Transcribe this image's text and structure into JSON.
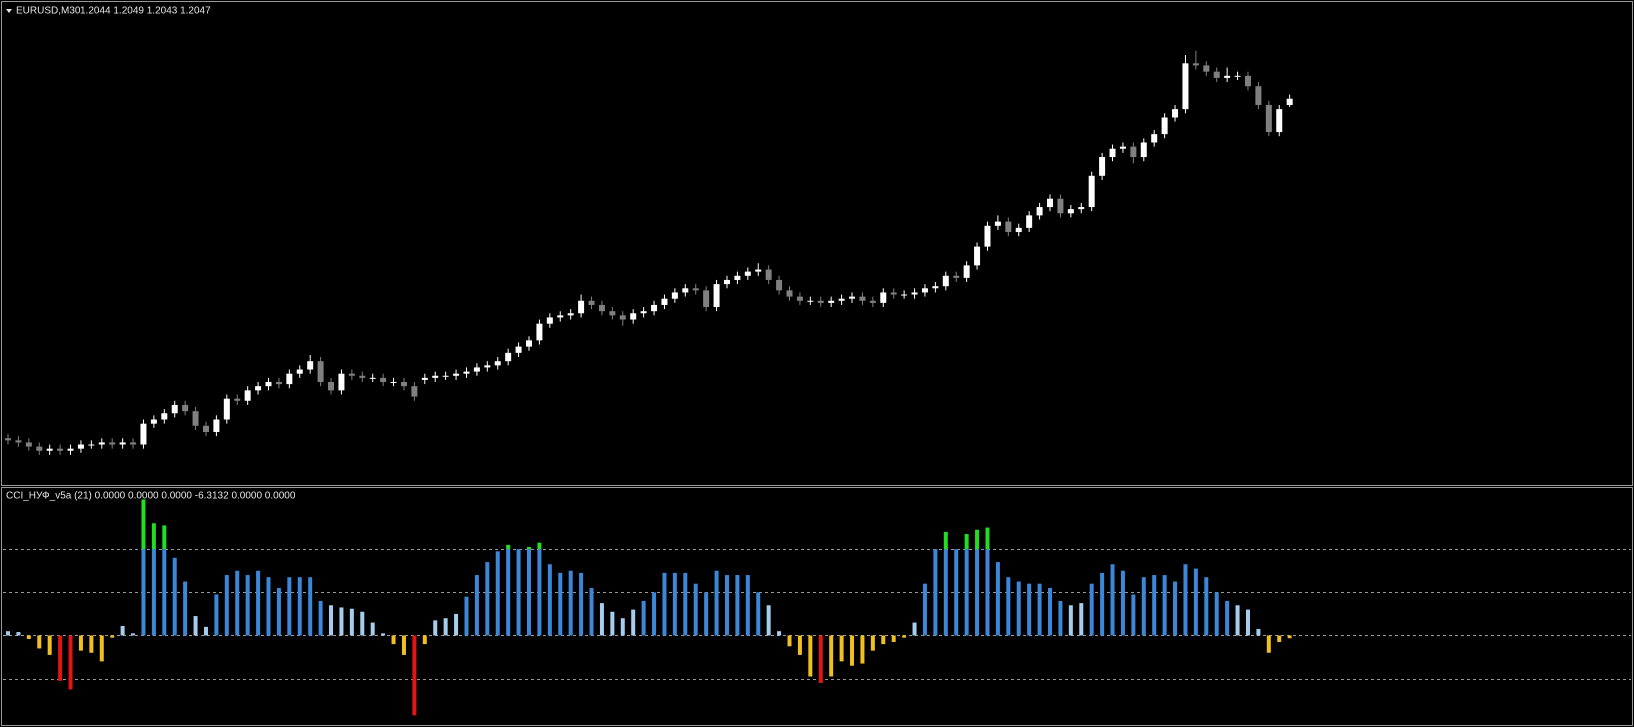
{
  "chart_data": [
    {
      "type": "candlestick",
      "title": "EURUSD,M30",
      "header_values": "1.2044 1.2049 1.2043 1.2047",
      "open": [
        1.1884,
        1.1883,
        1.1882,
        1.188,
        1.1878,
        1.1879,
        1.1878,
        1.1879,
        1.1881,
        1.1881,
        1.1882,
        1.1881,
        1.1882,
        1.1881,
        1.1891,
        1.1893,
        1.1896,
        1.19,
        1.1897,
        1.189,
        1.1887,
        1.1893,
        1.1903,
        1.1902,
        1.1907,
        1.1909,
        1.1911,
        1.191,
        1.1915,
        1.1917,
        1.1921,
        1.1911,
        1.1907,
        1.1915,
        1.1914,
        1.1913,
        1.1913,
        1.1911,
        1.1911,
        1.1909,
        1.1912,
        1.1913,
        1.1914,
        1.1914,
        1.1915,
        1.1916,
        1.1918,
        1.1919,
        1.1921,
        1.1925,
        1.1928,
        1.1931,
        1.1939,
        1.1942,
        1.1943,
        1.1944,
        1.195,
        1.1948,
        1.1945,
        1.1943,
        1.1941,
        1.1944,
        1.1945,
        1.1948,
        1.1951,
        1.1954,
        1.1956,
        1.1955,
        1.1947,
        1.1958,
        1.196,
        1.1962,
        1.1964,
        1.1965,
        1.196,
        1.1955,
        1.1952,
        1.195,
        1.195,
        1.1949,
        1.195,
        1.1951,
        1.1952,
        1.195,
        1.1949,
        1.1954,
        1.1953,
        1.1953,
        1.1954,
        1.1956,
        1.1957,
        1.1962,
        1.1961,
        1.1967,
        1.1976,
        1.1986,
        1.1988,
        1.1983,
        1.1985,
        1.1991,
        1.1995,
        1.1999,
        1.1992,
        1.1994,
        1.1995,
        1.201,
        1.2019,
        1.2023,
        1.2024,
        1.2019,
        1.2026,
        1.203,
        1.2038,
        1.2042,
        1.2064,
        1.2063,
        1.206,
        1.2057,
        1.2058,
        1.2058,
        1.2053,
        1.2044,
        1.2031,
        1.2044
      ],
      "high": [
        1.1886,
        1.1885,
        1.1884,
        1.1882,
        1.1881,
        1.1881,
        1.1881,
        1.1883,
        1.1883,
        1.1884,
        1.1884,
        1.1884,
        1.1884,
        1.1893,
        1.1895,
        1.1898,
        1.1902,
        1.1902,
        1.1899,
        1.1892,
        1.1895,
        1.1905,
        1.1905,
        1.1909,
        1.1911,
        1.1913,
        1.1913,
        1.1917,
        1.1919,
        1.1924,
        1.1923,
        1.1913,
        1.1917,
        1.1917,
        1.1916,
        1.1915,
        1.1915,
        1.1913,
        1.1913,
        1.1911,
        1.1915,
        1.1916,
        1.1916,
        1.1917,
        1.1918,
        1.192,
        1.1921,
        1.1923,
        1.1927,
        1.193,
        1.1933,
        1.1941,
        1.1944,
        1.1945,
        1.1946,
        1.1953,
        1.1952,
        1.195,
        1.1947,
        1.1945,
        1.1946,
        1.1947,
        1.195,
        1.1953,
        1.1956,
        1.1958,
        1.1958,
        1.1957,
        1.196,
        1.1962,
        1.1964,
        1.1966,
        1.1968,
        1.1967,
        1.1962,
        1.1957,
        1.1954,
        1.1952,
        1.1952,
        1.1952,
        1.1953,
        1.1954,
        1.1954,
        1.1952,
        1.1956,
        1.1956,
        1.1955,
        1.1956,
        1.1958,
        1.1959,
        1.1964,
        1.1964,
        1.1969,
        1.1978,
        1.1988,
        1.1991,
        1.199,
        1.1987,
        1.1993,
        1.1997,
        1.2001,
        1.2001,
        1.1996,
        1.1997,
        1.2012,
        1.2021,
        1.2025,
        1.2026,
        1.2026,
        1.2028,
        1.2032,
        1.204,
        1.2044,
        1.2068,
        1.207,
        1.2065,
        1.2062,
        1.2062,
        1.206,
        1.206,
        1.2055,
        1.2046,
        1.2044,
        1.2049
      ],
      "low": [
        1.1881,
        1.188,
        1.1878,
        1.1876,
        1.1876,
        1.1876,
        1.1876,
        1.1877,
        1.1879,
        1.1879,
        1.1879,
        1.1879,
        1.1879,
        1.1879,
        1.1889,
        1.1891,
        1.1894,
        1.1895,
        1.1888,
        1.1885,
        1.1885,
        1.1891,
        1.19,
        1.19,
        1.1905,
        1.1907,
        1.1908,
        1.1908,
        1.1913,
        1.1915,
        1.1909,
        1.1905,
        1.1905,
        1.1912,
        1.1911,
        1.1911,
        1.1909,
        1.1909,
        1.1907,
        1.1902,
        1.191,
        1.1911,
        1.1912,
        1.1912,
        1.1913,
        1.1914,
        1.1916,
        1.1917,
        1.1919,
        1.1923,
        1.1926,
        1.1929,
        1.1937,
        1.194,
        1.1941,
        1.1942,
        1.1946,
        1.1943,
        1.1941,
        1.1938,
        1.1939,
        1.1942,
        1.1943,
        1.1946,
        1.1949,
        1.1952,
        1.1953,
        1.1945,
        1.1945,
        1.1956,
        1.1958,
        1.196,
        1.1962,
        1.1958,
        1.1953,
        1.195,
        1.1948,
        1.1948,
        1.1947,
        1.1947,
        1.1948,
        1.1949,
        1.1948,
        1.1947,
        1.1947,
        1.1951,
        1.1951,
        1.1951,
        1.1952,
        1.1954,
        1.1955,
        1.1959,
        1.1959,
        1.1965,
        1.1974,
        1.1984,
        1.1981,
        1.1981,
        1.1983,
        1.1989,
        1.1993,
        1.199,
        1.199,
        1.1992,
        1.1993,
        1.2008,
        1.2017,
        1.2021,
        1.2016,
        1.2017,
        1.2024,
        1.2028,
        1.2036,
        1.204,
        1.2061,
        1.2058,
        1.2055,
        1.2055,
        1.2056,
        1.2051,
        1.2042,
        1.2029,
        1.2029,
        1.2043
      ],
      "close": [
        1.1883,
        1.1882,
        1.188,
        1.1878,
        1.1879,
        1.1878,
        1.1879,
        1.1881,
        1.1881,
        1.1882,
        1.1881,
        1.1882,
        1.1881,
        1.1891,
        1.1893,
        1.1896,
        1.19,
        1.1897,
        1.189,
        1.1887,
        1.1893,
        1.1903,
        1.1902,
        1.1907,
        1.1909,
        1.1911,
        1.191,
        1.1915,
        1.1917,
        1.1921,
        1.1911,
        1.1907,
        1.1915,
        1.1914,
        1.1913,
        1.1913,
        1.1911,
        1.1911,
        1.1909,
        1.1904,
        1.1913,
        1.1914,
        1.1914,
        1.1915,
        1.1916,
        1.1918,
        1.1919,
        1.1921,
        1.1925,
        1.1928,
        1.1931,
        1.1939,
        1.1942,
        1.1943,
        1.1944,
        1.195,
        1.1948,
        1.1945,
        1.1943,
        1.1941,
        1.1944,
        1.1945,
        1.1948,
        1.1951,
        1.1954,
        1.1956,
        1.1955,
        1.1947,
        1.1958,
        1.196,
        1.1962,
        1.1964,
        1.1965,
        1.196,
        1.1955,
        1.1952,
        1.195,
        1.195,
        1.1949,
        1.195,
        1.1951,
        1.1952,
        1.195,
        1.1949,
        1.1954,
        1.1953,
        1.1953,
        1.1954,
        1.1956,
        1.1957,
        1.1962,
        1.1961,
        1.1967,
        1.1976,
        1.1986,
        1.1988,
        1.1983,
        1.1985,
        1.1991,
        1.1995,
        1.1999,
        1.1992,
        1.1994,
        1.1995,
        1.201,
        1.2019,
        1.2023,
        1.2024,
        1.2019,
        1.2026,
        1.203,
        1.2038,
        1.2042,
        1.2064,
        1.2063,
        1.206,
        1.2057,
        1.2058,
        1.2058,
        1.2053,
        1.2044,
        1.2031,
        1.2042,
        1.2047
      ],
      "ylim": [
        1.1863,
        1.2092
      ],
      "up_color": "#ffffff",
      "down_color": "#808080"
    },
    {
      "type": "bar",
      "title": "CCI_НУФ_v5a (21) 0.0000 0.0000 0.0000 -6.3132 0.0000 0.0000",
      "values": [
        10,
        8,
        -8,
        -30,
        -45,
        -105,
        -125,
        -35,
        -40,
        -60,
        -5,
        22,
        5,
        315,
        260,
        255,
        180,
        125,
        45,
        20,
        95,
        140,
        150,
        140,
        150,
        135,
        110,
        135,
        135,
        135,
        80,
        70,
        65,
        62,
        55,
        30,
        5,
        -20,
        -45,
        -185,
        -20,
        35,
        40,
        50,
        90,
        140,
        170,
        195,
        210,
        200,
        205,
        215,
        165,
        145,
        150,
        145,
        110,
        75,
        55,
        40,
        60,
        80,
        100,
        145,
        145,
        145,
        120,
        100,
        150,
        140,
        140,
        140,
        100,
        70,
        10,
        -25,
        -45,
        -95,
        -110,
        -95,
        -60,
        -70,
        -65,
        -35,
        -20,
        -15,
        -5,
        30,
        120,
        200,
        240,
        200,
        235,
        245,
        250,
        170,
        135,
        125,
        120,
        120,
        110,
        80,
        70,
        75,
        120,
        145,
        165,
        150,
        95,
        135,
        140,
        140,
        125,
        165,
        155,
        135,
        100,
        80,
        70,
        60,
        15,
        -40,
        -15,
        -6.3132
      ],
      "ylim": [
        -205,
        337
      ],
      "levels": [
        200,
        100,
        0,
        -100
      ],
      "color_bands": [
        [
          200,
          "#22dd22"
        ],
        [
          80,
          "#3d87d8"
        ],
        [
          0,
          "#a6cdee"
        ],
        [
          -100,
          "#f0c020"
        ],
        [
          null,
          "#e01515"
        ]
      ]
    }
  ]
}
